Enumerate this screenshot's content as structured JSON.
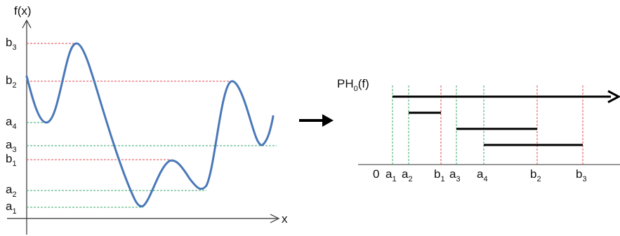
{
  "left_plot": {
    "y_axis_label": "f(x)",
    "x_axis_label": "x",
    "levels": [
      {
        "base": "b",
        "sub": "3",
        "kind": "b"
      },
      {
        "base": "b",
        "sub": "2",
        "kind": "b"
      },
      {
        "base": "a",
        "sub": "4",
        "kind": "a"
      },
      {
        "base": "a",
        "sub": "3",
        "kind": "a"
      },
      {
        "base": "b",
        "sub": "1",
        "kind": "b"
      },
      {
        "base": "a",
        "sub": "2",
        "kind": "a"
      },
      {
        "base": "a",
        "sub": "1",
        "kind": "a"
      }
    ]
  },
  "arrow": "→",
  "right_plot": {
    "title_base": "PH",
    "title_sub": "0",
    "title_tail": "(f)",
    "origin_label": "0",
    "ticks": [
      {
        "base": "a",
        "sub": "1",
        "kind": "a"
      },
      {
        "base": "a",
        "sub": "2",
        "kind": "a"
      },
      {
        "base": "b",
        "sub": "1",
        "kind": "b"
      },
      {
        "base": "a",
        "sub": "3",
        "kind": "a"
      },
      {
        "base": "a",
        "sub": "4",
        "kind": "a"
      },
      {
        "base": "b",
        "sub": "2",
        "kind": "b"
      },
      {
        "base": "b",
        "sub": "3",
        "kind": "b"
      }
    ],
    "bars": [
      {
        "birth": "a1",
        "death": "infinity"
      },
      {
        "birth": "a2",
        "death": "b1"
      },
      {
        "birth": "a3",
        "death": "b2"
      },
      {
        "birth": "a4",
        "death": "b3"
      }
    ]
  },
  "colors": {
    "curve": "#4a78b8",
    "birth_line": "#3aa86a",
    "death_line": "#e0474c",
    "axis": "#333333",
    "bar": "#000000"
  }
}
